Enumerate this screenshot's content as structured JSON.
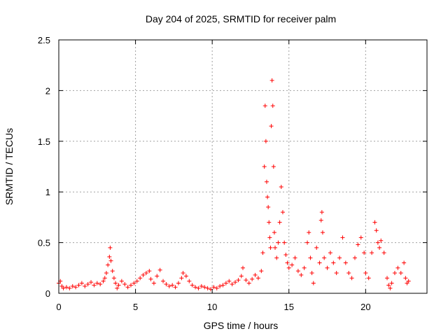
{
  "chart_data": {
    "type": "scatter",
    "title": "Day 204 of 2025, SRMTID for receiver palm",
    "xlabel": "GPS time / hours",
    "ylabel": "SRMTID / TECUs",
    "xlim": [
      0,
      24
    ],
    "ylim": [
      0,
      2.5
    ],
    "xticks": [
      0,
      5,
      10,
      15,
      20
    ],
    "yticks": [
      0,
      0.5,
      1,
      1.5,
      2,
      2.5
    ],
    "xtick_labels": [
      "0",
      "5",
      "10",
      "15",
      "20"
    ],
    "ytick_labels": [
      "0",
      "0.5",
      "1",
      "1.5",
      "2",
      "2.5"
    ],
    "grid": true,
    "marker": "+",
    "color": "#ff0000",
    "series": [
      {
        "name": "SRMTID",
        "points": [
          [
            0.0,
            0.1
          ],
          [
            0.1,
            0.12
          ],
          [
            0.2,
            0.07
          ],
          [
            0.3,
            0.05
          ],
          [
            0.5,
            0.06
          ],
          [
            0.7,
            0.05
          ],
          [
            0.9,
            0.07
          ],
          [
            1.1,
            0.06
          ],
          [
            1.3,
            0.08
          ],
          [
            1.5,
            0.1
          ],
          [
            1.7,
            0.07
          ],
          [
            1.9,
            0.09
          ],
          [
            2.1,
            0.11
          ],
          [
            2.3,
            0.08
          ],
          [
            2.5,
            0.1
          ],
          [
            2.7,
            0.09
          ],
          [
            2.9,
            0.12
          ],
          [
            3.0,
            0.15
          ],
          [
            3.1,
            0.2
          ],
          [
            3.2,
            0.28
          ],
          [
            3.3,
            0.36
          ],
          [
            3.35,
            0.45
          ],
          [
            3.4,
            0.32
          ],
          [
            3.5,
            0.22
          ],
          [
            3.6,
            0.15
          ],
          [
            3.7,
            0.1
          ],
          [
            3.8,
            0.05
          ],
          [
            3.9,
            0.08
          ],
          [
            4.1,
            0.12
          ],
          [
            4.3,
            0.09
          ],
          [
            4.5,
            0.06
          ],
          [
            4.7,
            0.08
          ],
          [
            4.9,
            0.1
          ],
          [
            5.1,
            0.12
          ],
          [
            5.3,
            0.15
          ],
          [
            5.5,
            0.18
          ],
          [
            5.7,
            0.2
          ],
          [
            5.9,
            0.22
          ],
          [
            6.0,
            0.14
          ],
          [
            6.2,
            0.1
          ],
          [
            6.4,
            0.17
          ],
          [
            6.6,
            0.23
          ],
          [
            6.8,
            0.12
          ],
          [
            7.0,
            0.09
          ],
          [
            7.2,
            0.07
          ],
          [
            7.4,
            0.08
          ],
          [
            7.6,
            0.06
          ],
          [
            7.8,
            0.1
          ],
          [
            8.0,
            0.15
          ],
          [
            8.1,
            0.2
          ],
          [
            8.3,
            0.17
          ],
          [
            8.5,
            0.12
          ],
          [
            8.7,
            0.08
          ],
          [
            8.9,
            0.06
          ],
          [
            9.1,
            0.05
          ],
          [
            9.3,
            0.07
          ],
          [
            9.5,
            0.06
          ],
          [
            9.7,
            0.05
          ],
          [
            9.9,
            0.04
          ],
          [
            10.1,
            0.06
          ],
          [
            10.3,
            0.05
          ],
          [
            10.5,
            0.07
          ],
          [
            10.7,
            0.08
          ],
          [
            10.9,
            0.1
          ],
          [
            11.1,
            0.12
          ],
          [
            11.3,
            0.09
          ],
          [
            11.5,
            0.11
          ],
          [
            11.7,
            0.13
          ],
          [
            11.9,
            0.17
          ],
          [
            12.0,
            0.25
          ],
          [
            12.2,
            0.13
          ],
          [
            12.4,
            0.1
          ],
          [
            12.6,
            0.14
          ],
          [
            12.8,
            0.18
          ],
          [
            13.0,
            0.15
          ],
          [
            13.2,
            0.22
          ],
          [
            13.3,
            0.4
          ],
          [
            13.4,
            1.25
          ],
          [
            13.45,
            1.85
          ],
          [
            13.5,
            1.5
          ],
          [
            13.55,
            1.1
          ],
          [
            13.6,
            0.95
          ],
          [
            13.65,
            0.85
          ],
          [
            13.7,
            0.7
          ],
          [
            13.75,
            0.55
          ],
          [
            13.8,
            0.45
          ],
          [
            13.85,
            1.65
          ],
          [
            13.9,
            2.1
          ],
          [
            13.95,
            1.85
          ],
          [
            14.0,
            1.25
          ],
          [
            14.05,
            0.6
          ],
          [
            14.1,
            0.45
          ],
          [
            14.2,
            0.35
          ],
          [
            14.3,
            0.5
          ],
          [
            14.4,
            0.7
          ],
          [
            14.5,
            1.05
          ],
          [
            14.6,
            0.8
          ],
          [
            14.7,
            0.5
          ],
          [
            14.8,
            0.38
          ],
          [
            14.9,
            0.3
          ],
          [
            15.0,
            0.25
          ],
          [
            15.2,
            0.28
          ],
          [
            15.4,
            0.35
          ],
          [
            15.6,
            0.22
          ],
          [
            15.8,
            0.18
          ],
          [
            16.0,
            0.25
          ],
          [
            16.2,
            0.5
          ],
          [
            16.3,
            0.6
          ],
          [
            16.4,
            0.35
          ],
          [
            16.5,
            0.2
          ],
          [
            16.6,
            0.1
          ],
          [
            16.8,
            0.45
          ],
          [
            17.0,
            0.3
          ],
          [
            17.1,
            0.72
          ],
          [
            17.15,
            0.8
          ],
          [
            17.2,
            0.6
          ],
          [
            17.3,
            0.35
          ],
          [
            17.5,
            0.25
          ],
          [
            17.7,
            0.4
          ],
          [
            17.9,
            0.3
          ],
          [
            18.1,
            0.2
          ],
          [
            18.3,
            0.35
          ],
          [
            18.5,
            0.55
          ],
          [
            18.7,
            0.3
          ],
          [
            18.9,
            0.2
          ],
          [
            19.1,
            0.15
          ],
          [
            19.3,
            0.35
          ],
          [
            19.5,
            0.48
          ],
          [
            19.7,
            0.55
          ],
          [
            19.9,
            0.4
          ],
          [
            20.0,
            0.2
          ],
          [
            20.2,
            0.15
          ],
          [
            20.4,
            0.4
          ],
          [
            20.6,
            0.7
          ],
          [
            20.7,
            0.62
          ],
          [
            20.8,
            0.5
          ],
          [
            20.9,
            0.45
          ],
          [
            21.0,
            0.52
          ],
          [
            21.2,
            0.4
          ],
          [
            21.4,
            0.15
          ],
          [
            21.5,
            0.08
          ],
          [
            21.6,
            0.05
          ],
          [
            21.7,
            0.1
          ],
          [
            21.9,
            0.2
          ],
          [
            22.1,
            0.25
          ],
          [
            22.3,
            0.2
          ],
          [
            22.5,
            0.3
          ],
          [
            22.6,
            0.15
          ],
          [
            22.7,
            0.1
          ],
          [
            22.8,
            0.12
          ]
        ]
      }
    ]
  }
}
